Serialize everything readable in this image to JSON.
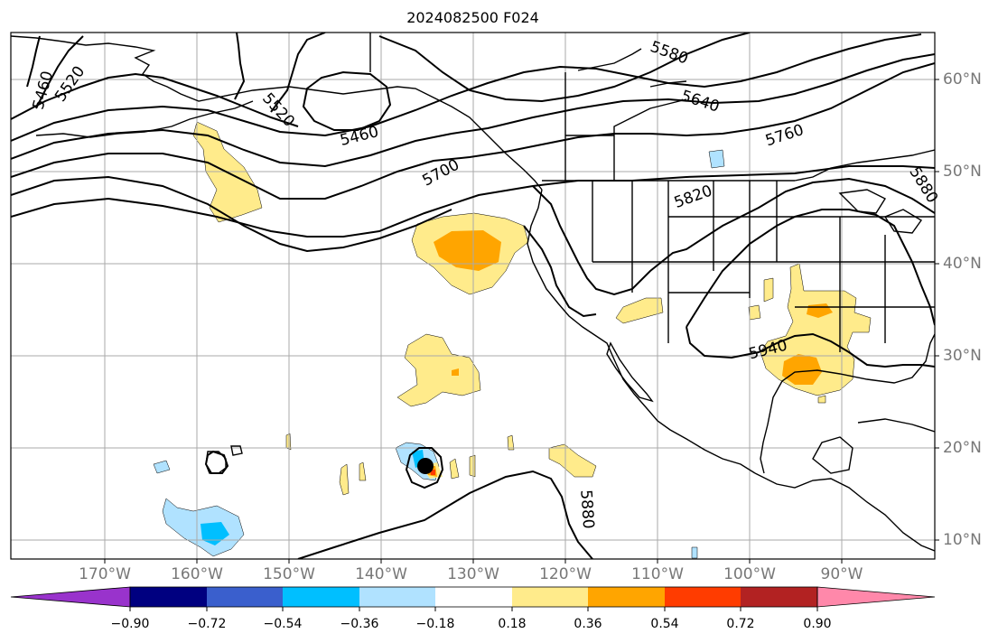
{
  "title": "2024082500 F024",
  "map": {
    "lon_labels": [
      "170°W",
      "160°W",
      "150°W",
      "140°W",
      "130°W",
      "120°W",
      "110°W",
      "100°W",
      "90°W"
    ],
    "lat_labels": [
      "60°N",
      "50°N",
      "40°N",
      "30°N",
      "20°N",
      "10°N"
    ],
    "height_contour_labels": [
      "5460",
      "5520",
      "5520",
      "5460",
      "5700",
      "5580",
      "5640",
      "5760",
      "5820",
      "5880",
      "5940",
      "5880"
    ],
    "storm_marker": "storm-center",
    "colors": {
      "contour": "#000000",
      "grid": "#aaaaaa",
      "coast": "#000000"
    }
  },
  "colorbar": {
    "ticks": [
      "−0.90",
      "−0.72",
      "−0.54",
      "−0.36",
      "−0.18",
      "0.18",
      "0.36",
      "0.54",
      "0.72",
      "0.90"
    ],
    "colors": [
      "#9933cc",
      "#000080",
      "#3a5fcd",
      "#00bfff",
      "#b0e2ff",
      "#ffffff",
      "#ffeb8b",
      "#ffa500",
      "#ff3c00",
      "#b22222",
      "#ff88aa"
    ],
    "extend": "both"
  }
}
